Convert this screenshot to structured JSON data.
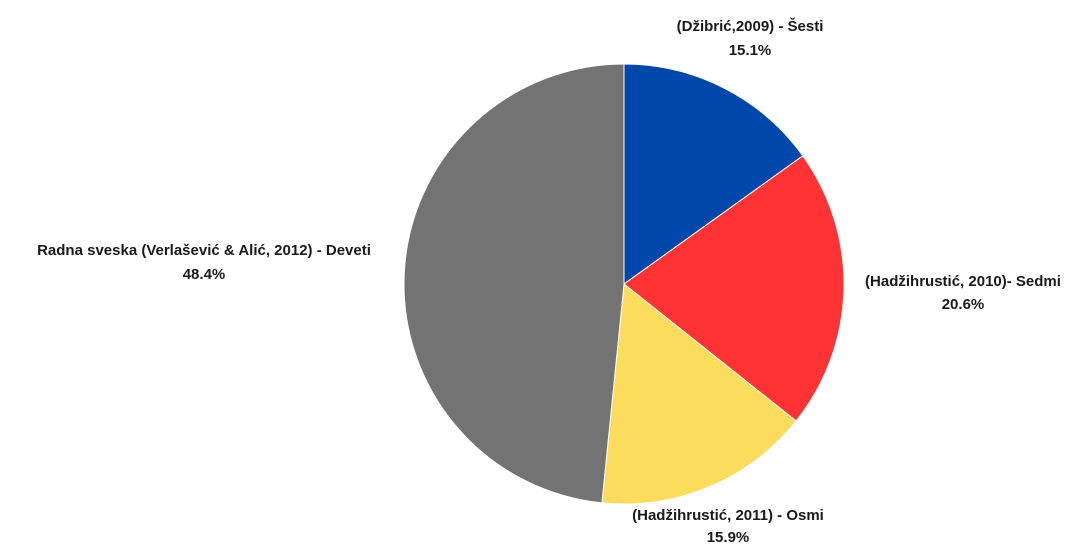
{
  "chart_data": {
    "type": "pie",
    "title": "",
    "start_angle_deg": 0,
    "direction": "clockwise",
    "slices": [
      {
        "label": "(Džibrić,2009) - Šesti",
        "value": 15.1,
        "display": "15.1%",
        "color": "#0047AB"
      },
      {
        "label": "(Hadžihrustić, 2010)- Sedmi",
        "value": 20.6,
        "display": "20.6%",
        "color": "#FF3333"
      },
      {
        "label": "(Hadžihrustić, 2011) - Osmi",
        "value": 15.9,
        "display": "15.9%",
        "color": "#FCDC5C"
      },
      {
        "label": "Radna sveska (Verlašević & Alić, 2012) - Deveti",
        "value": 48.4,
        "display": "48.4%",
        "color": "#737373"
      }
    ]
  }
}
